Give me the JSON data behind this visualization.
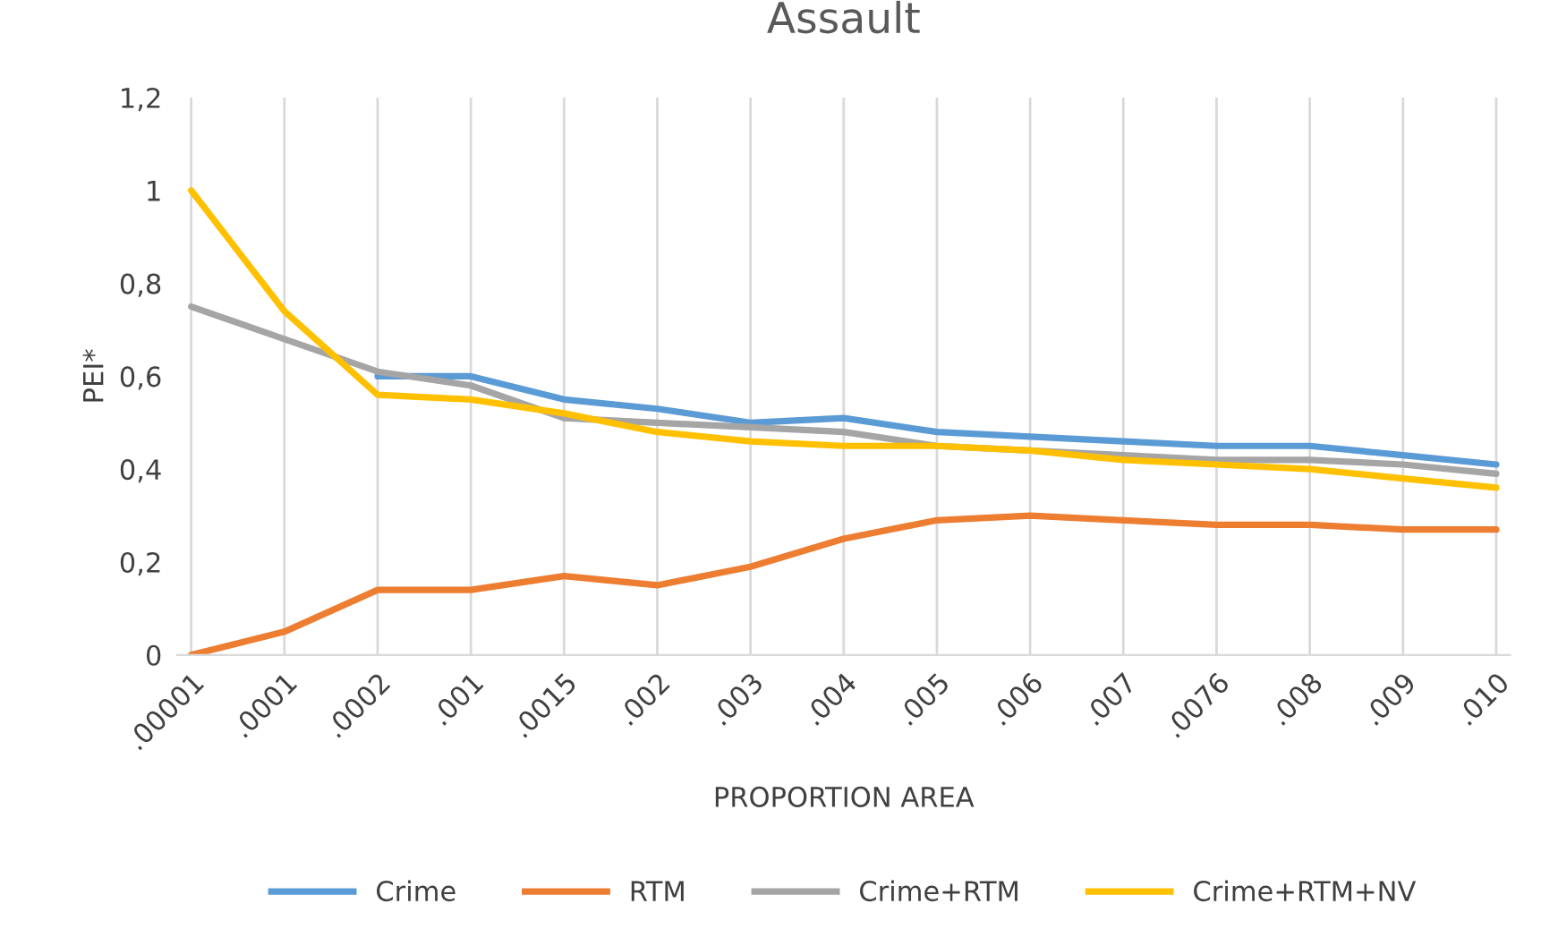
{
  "chart_data": {
    "type": "line",
    "title": "Assault",
    "xlabel": "PROPORTION AREA",
    "ylabel": "PEI*",
    "categories": [
      ".00001",
      ".0001",
      ".0002",
      ".001",
      ".0015",
      ".002",
      ".003",
      ".004",
      ".005",
      ".006",
      ".007",
      ".0076",
      ".008",
      ".009",
      ".010"
    ],
    "series": [
      {
        "name": "Crime",
        "color": "#5b9bd5",
        "values": [
          null,
          null,
          0.6,
          0.6,
          0.55,
          0.53,
          0.5,
          0.51,
          0.48,
          0.47,
          0.46,
          0.45,
          0.45,
          0.43,
          0.41
        ]
      },
      {
        "name": "RTM",
        "color": "#ed7d31",
        "values": [
          0,
          0.05,
          0.14,
          0.14,
          0.17,
          0.15,
          0.19,
          0.25,
          0.29,
          0.3,
          0.29,
          0.28,
          0.28,
          0.27,
          0.27
        ]
      },
      {
        "name": "Crime+RTM",
        "color": "#a5a5a5",
        "values": [
          0.75,
          0.68,
          0.61,
          0.58,
          0.51,
          0.5,
          0.49,
          0.48,
          0.45,
          0.44,
          0.43,
          0.42,
          0.42,
          0.41,
          0.39
        ]
      },
      {
        "name": "Crime+RTM+NV",
        "color": "#ffc000",
        "values": [
          1.0,
          0.74,
          0.56,
          0.55,
          0.52,
          0.48,
          0.46,
          0.45,
          0.45,
          0.44,
          0.42,
          0.41,
          0.4,
          0.38,
          0.36
        ]
      }
    ],
    "ylim": [
      0,
      1.2
    ],
    "yticks": [
      0,
      {
        "value": 0.2,
        "label": "0,2"
      },
      {
        "value": 0.4,
        "label": "0,4"
      },
      {
        "value": 0.6,
        "label": "0,6"
      },
      {
        "value": 0.8,
        "label": "0,8"
      },
      1,
      {
        "value": 1.2,
        "label": "1,2"
      }
    ],
    "grid": "x",
    "legend": "bottom",
    "marker": "none",
    "line_style": "solid"
  }
}
